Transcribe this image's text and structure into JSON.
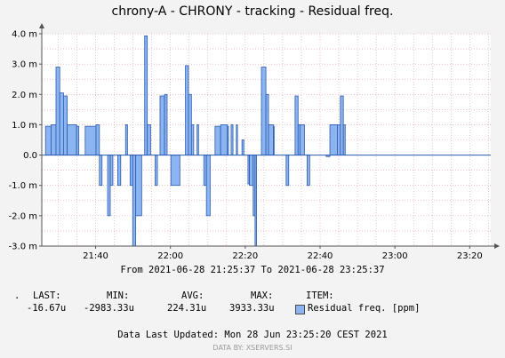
{
  "title": "chrony-A - CHRONY - tracking - Residual freq.",
  "range_text": "From 2021-06-28 21:25:37 To 2021-06-28 23:25:37",
  "legend": {
    "dot": ".",
    "last_label": "LAST:",
    "min_label": "MIN:",
    "avg_label": "AVG:",
    "max_label": "MAX:",
    "item_label": "ITEM:",
    "last_value": "-16.67u",
    "min_value": "-2983.33u",
    "avg_value": "224.31u",
    "max_value": "3933.33u",
    "item_name": "Residual freq. [ppm]"
  },
  "updated_text": "Data Last Updated: Mon 28 Jun 23:25:20 CEST 2021",
  "watermark": "DATA BY: XSERVERS.SI",
  "colors": {
    "fill": "#8cb4f0",
    "line": "#2a5bb0",
    "grid": "#e4a0a0"
  },
  "chart_data": {
    "type": "area",
    "title": "chrony-A - CHRONY - tracking - Residual freq.",
    "ylim": [
      -3.0,
      4.0
    ],
    "y_ticks": [
      {
        "v": 4,
        "label": "4.0 m"
      },
      {
        "v": 3,
        "label": "3.0 m"
      },
      {
        "v": 2,
        "label": "2.0 m"
      },
      {
        "v": 1,
        "label": "1.0 m"
      },
      {
        "v": 0,
        "label": "0.0"
      },
      {
        "v": -1,
        "label": "-1.0 m"
      },
      {
        "v": -2,
        "label": "-2.0 m"
      },
      {
        "v": -3,
        "label": "-3.0 m"
      }
    ],
    "x_ticks": [
      {
        "m": 14.38,
        "label": "21:40"
      },
      {
        "m": 34.38,
        "label": "22:00"
      },
      {
        "m": 54.38,
        "label": "22:20"
      },
      {
        "m": 74.38,
        "label": "22:40"
      },
      {
        "m": 94.38,
        "label": "23:00"
      },
      {
        "m": 114.38,
        "label": "23:20"
      }
    ],
    "x_range_minutes": [
      0,
      120
    ],
    "grid": true,
    "series": [
      {
        "name": "Residual freq. [ppm]",
        "steps": [
          [
            0.5,
            0.0
          ],
          [
            1.0,
            0.95
          ],
          [
            2.5,
            1.0
          ],
          [
            3.8,
            2.9
          ],
          [
            4.8,
            2.05
          ],
          [
            5.8,
            1.95
          ],
          [
            6.8,
            1.0
          ],
          [
            9.3,
            0.95
          ],
          [
            9.9,
            0.0
          ],
          [
            11.6,
            0.95
          ],
          [
            14.5,
            1.0
          ],
          [
            15.4,
            -1.0
          ],
          [
            16.1,
            0.0
          ],
          [
            17.6,
            -2.0
          ],
          [
            18.3,
            -1.0
          ],
          [
            19.0,
            0.0
          ],
          [
            20.3,
            -1.0
          ],
          [
            21.1,
            0.0
          ],
          [
            22.4,
            1.0
          ],
          [
            22.9,
            0.0
          ],
          [
            23.6,
            -1.0
          ],
          [
            24.3,
            -3.0
          ],
          [
            25.1,
            -2.0
          ],
          [
            26.7,
            0.0
          ],
          [
            27.5,
            3.93
          ],
          [
            28.2,
            1.0
          ],
          [
            29.1,
            0.0
          ],
          [
            30.3,
            -1.0
          ],
          [
            30.9,
            0.0
          ],
          [
            31.6,
            1.95
          ],
          [
            32.8,
            2.0
          ],
          [
            33.5,
            0.0
          ],
          [
            34.5,
            -1.0
          ],
          [
            36.9,
            0.0
          ],
          [
            38.4,
            2.95
          ],
          [
            39.2,
            2.0
          ],
          [
            40.0,
            1.0
          ],
          [
            40.6,
            0.0
          ],
          [
            41.5,
            1.0
          ],
          [
            41.9,
            0.0
          ],
          [
            43.3,
            -1.0
          ],
          [
            44.0,
            -2.0
          ],
          [
            45.0,
            0.0
          ],
          [
            46.3,
            0.95
          ],
          [
            47.8,
            1.0
          ],
          [
            49.6,
            0.95
          ],
          [
            49.9,
            0.0
          ],
          [
            50.6,
            1.0
          ],
          [
            51.1,
            0.0
          ],
          [
            52.0,
            1.0
          ],
          [
            52.3,
            0.0
          ],
          [
            53.5,
            0.5
          ],
          [
            54.0,
            0.0
          ],
          [
            55.1,
            -0.95
          ],
          [
            55.5,
            -1.0
          ],
          [
            56.5,
            -2.0
          ],
          [
            57.0,
            -3.0
          ],
          [
            57.4,
            0.0
          ],
          [
            58.7,
            2.9
          ],
          [
            59.9,
            2.0
          ],
          [
            60.6,
            1.0
          ],
          [
            61.9,
            0.95
          ],
          [
            62.1,
            0.0
          ],
          [
            65.3,
            -1.0
          ],
          [
            66.0,
            0.0
          ],
          [
            66.5,
            0.0
          ],
          [
            67.7,
            1.95
          ],
          [
            68.5,
            1.0
          ],
          [
            69.0,
            1.0
          ],
          [
            70.2,
            0.0
          ],
          [
            70.9,
            -1.0
          ],
          [
            71.6,
            0.0
          ],
          [
            73.6,
            0.0
          ],
          [
            74.5,
            0.0
          ],
          [
            76.0,
            -0.05
          ],
          [
            77.0,
            1.0
          ],
          [
            79.0,
            1.0
          ],
          [
            79.8,
            1.95
          ],
          [
            80.6,
            1.0
          ],
          [
            81.1,
            0.0
          ]
        ]
      }
    ]
  }
}
